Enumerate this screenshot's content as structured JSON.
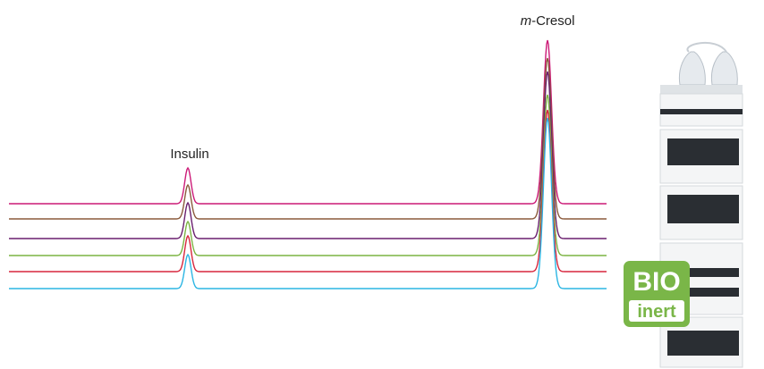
{
  "peaks": [
    {
      "label": "Insulin"
    },
    {
      "label_parts": [
        "m",
        "-Cresol"
      ]
    }
  ],
  "badge": {
    "top": "BIO",
    "bottom": "inert"
  }
}
